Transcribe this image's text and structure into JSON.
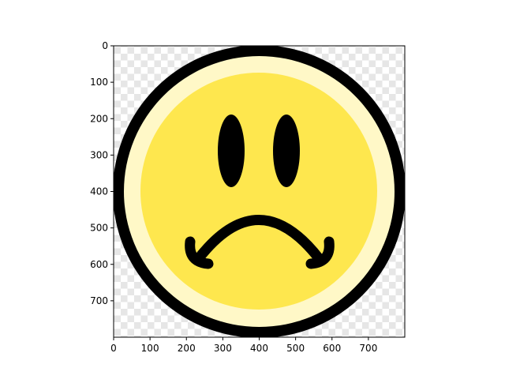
{
  "image": {
    "subject": "frowning smiley face emoji",
    "x_ticks": [
      "0",
      "100",
      "200",
      "300",
      "400",
      "500",
      "600",
      "700"
    ],
    "y_ticks": [
      "0",
      "100",
      "200",
      "300",
      "400",
      "500",
      "600",
      "700"
    ],
    "colors": {
      "outline": "#000000",
      "outer_ring": "#FFF8C7",
      "face": "#FEE74E",
      "checker_light": "#ffffff",
      "checker_dark": "#e6e6e6",
      "axis": "#000000"
    }
  }
}
